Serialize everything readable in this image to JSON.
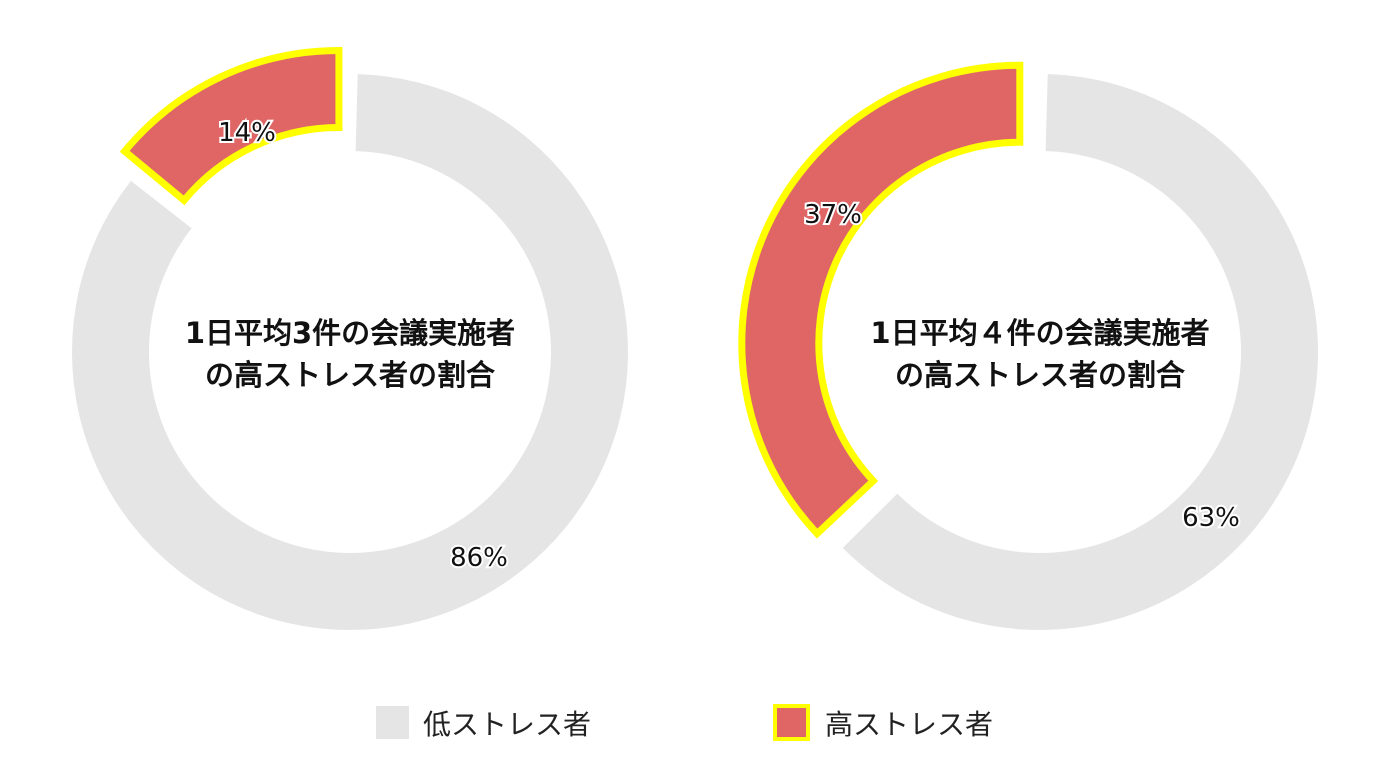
{
  "chart_data": [
    {
      "type": "pie",
      "title": "1日平均3件の会議実施者の高ストレス者の割合",
      "title_lines": [
        "1日平均3件の会議実施者",
        "の高ストレス者の割合"
      ],
      "categories": [
        "低ストレス者",
        "高ストレス者"
      ],
      "values": [
        86,
        14
      ],
      "labels": [
        "86%",
        "14%"
      ],
      "highlighted": "高ストレス者"
    },
    {
      "type": "pie",
      "title": "1日平均４件の会議実施者の高ストレス者の割合",
      "title_lines": [
        "1日平均４件の会議実施者",
        "の高ストレス者の割合"
      ],
      "categories": [
        "低ストレス者",
        "高ストレス者"
      ],
      "values": [
        63,
        37
      ],
      "labels": [
        "63%",
        "37%"
      ],
      "highlighted": "高ストレス者"
    }
  ],
  "legend": {
    "items": [
      {
        "label": "低ストレス者",
        "color": "#e5e5e5",
        "border": "none"
      },
      {
        "label": "高ストレス者",
        "color": "#e06666",
        "border": "#ffff00"
      }
    ]
  },
  "colors": {
    "low": "#e5e5e5",
    "high": "#e06666",
    "highlight_border": "#ffff00"
  }
}
